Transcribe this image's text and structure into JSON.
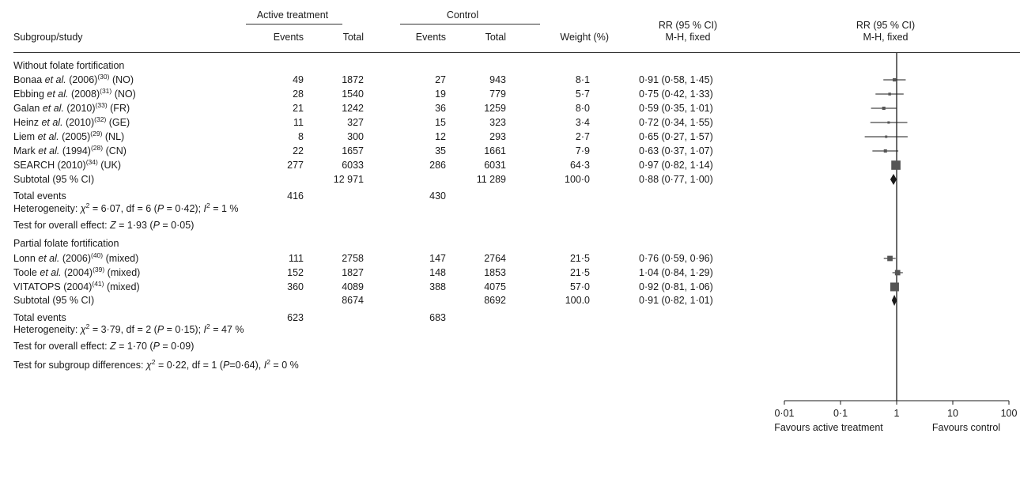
{
  "header": {
    "active_group": "Active treatment",
    "control_group": "Control",
    "col_study": "Subgroup/study",
    "col_events": "Events",
    "col_total": "Total",
    "col_weight": "Weight (%)",
    "rr_header": "RR (95 % CI)",
    "rr_method": "M-H, fixed",
    "plot_rr_header": "RR (95 % CI)",
    "plot_rr_method": "M-H, fixed"
  },
  "groups": [
    {
      "title": "Without folate fortification",
      "studies": [
        {
          "author": "Bonaa",
          "etal": " et al.",
          "year": " (2006)",
          "ref": "(30)",
          "country": " (NO)",
          "ae": "49",
          "at": "1872",
          "ce": "27",
          "ct": "943",
          "weight": "8·1",
          "ci": "0·91 (0·58, 1·45)"
        },
        {
          "author": "Ebbing",
          "etal": " et al.",
          "year": " (2008)",
          "ref": "(31)",
          "country": " (NO)",
          "ae": "28",
          "at": "1540",
          "ce": "19",
          "ct": "779",
          "weight": "5·7",
          "ci": "0·75 (0·42, 1·33)"
        },
        {
          "author": "Galan",
          "etal": " et al.",
          "year": " (2010)",
          "ref": "(33)",
          "country": " (FR)",
          "ae": "21",
          "at": "1242",
          "ce": "36",
          "ct": "1259",
          "weight": "8·0",
          "ci": "0·59 (0·35, 1·01)"
        },
        {
          "author": "Heinz",
          "etal": " et al.",
          "year": " (2010)",
          "ref": "(32)",
          "country": " (GE)",
          "ae": "11",
          "at": "327",
          "ce": "15",
          "ct": "323",
          "weight": "3·4",
          "ci": "0·72 (0·34, 1·55)"
        },
        {
          "author": "Liem",
          "etal": " et al.",
          "year": " (2005)",
          "ref": "(29)",
          "country": " (NL)",
          "ae": "8",
          "at": "300",
          "ce": "12",
          "ct": "293",
          "weight": "2·7",
          "ci": "0·65 (0·27, 1·57)"
        },
        {
          "author": "Mark",
          "etal": " et al.",
          "year": " (1994)",
          "ref": "(28)",
          "country": " (CN)",
          "ae": "22",
          "at": "1657",
          "ce": "35",
          "ct": "1661",
          "weight": "7·9",
          "ci": "0·63 (0·37, 1·07)"
        },
        {
          "author": "SEARCH",
          "etal": "",
          "year": " (2010)",
          "ref": "(34)",
          "country": " (UK)",
          "ae": "277",
          "at": "6033",
          "ce": "286",
          "ct": "6031",
          "weight": "64·3",
          "ci": "0·97 (0·82, 1·14)"
        }
      ],
      "subtotal": {
        "label": "Subtotal (95 % CI)",
        "at": "12 971",
        "ct": "11 289",
        "weight": "100·0",
        "ci": "0·88 (0·77, 1·00)"
      },
      "total_events": {
        "label": "Total events",
        "a": "416",
        "c": "430"
      },
      "heterogeneity": {
        "prefix": "Heterogeneity: ",
        "chi": "χ",
        "chi_rest": " = 6·07, df = 6 (",
        "p": "P",
        "p_rest": " = 0·42); ",
        "i": "I",
        "i_rest": " = 1 %"
      },
      "overall": {
        "prefix": "Test for overall effect: ",
        "z": "Z",
        "z_rest": " = 1·93 (",
        "p": "P",
        "p_rest": " = 0·05)"
      }
    },
    {
      "title": "Partial folate fortification",
      "studies": [
        {
          "author": "Lonn",
          "etal": " et al.",
          "year": " (2006)",
          "ref": "(40)",
          "country": " (mixed)",
          "ae": "111",
          "at": "2758",
          "ce": "147",
          "ct": "2764",
          "weight": "21·5",
          "ci": "0·76 (0·59, 0·96)"
        },
        {
          "author": "Toole",
          "etal": " et al.",
          "year": " (2004)",
          "ref": "(39)",
          "country": " (mixed)",
          "ae": "152",
          "at": "1827",
          "ce": "148",
          "ct": "1853",
          "weight": "21·5",
          "ci": "1·04 (0·84, 1·29)"
        },
        {
          "author": "VITATOPS",
          "etal": "",
          "year": " (2004)",
          "ref": "(41)",
          "country": " (mixed)",
          "ae": "360",
          "at": "4089",
          "ce": "388",
          "ct": "4075",
          "weight": "57·0",
          "ci": "0·92 (0·81, 1·06)"
        }
      ],
      "subtotal": {
        "label": "Subtotal (95 % CI)",
        "at": "8674",
        "ct": "8692",
        "weight": "100.0",
        "ci": "0·91 (0·82, 1·01)"
      },
      "total_events": {
        "label": "Total events",
        "a": "623",
        "c": "683"
      },
      "heterogeneity": {
        "prefix": "Heterogeneity: ",
        "chi": "χ",
        "chi_rest": " = 3·79, df = 2 (",
        "p": "P",
        "p_rest": " = 0·15); ",
        "i": "I",
        "i_rest": " = 47 %"
      },
      "overall": {
        "prefix": "Test for overall effect: ",
        "z": "Z",
        "z_rest": " = 1·70 (",
        "p": "P",
        "p_rest": " = 0·09)"
      }
    }
  ],
  "subgroup_test": {
    "prefix": "Test for subgroup differences: ",
    "chi": "χ",
    "chi_rest": " = 0·22, df = 1 (",
    "p": "P",
    "p_rest": "=0·64), ",
    "i": "I",
    "i_rest": " = 0 %"
  },
  "chart_data": {
    "type": "forest",
    "x_scale": "log",
    "xlim": [
      0.01,
      100
    ],
    "reference_line": 1,
    "x_ticks": [
      "0·01",
      "0·1",
      "1",
      "10",
      "100"
    ],
    "x_tick_values": [
      0.01,
      0.1,
      1,
      10,
      100
    ],
    "xlabel_left": "Favours active treatment",
    "xlabel_right": "Favours control",
    "studies": [
      {
        "rr": 0.91,
        "lo": 0.58,
        "hi": 1.45,
        "weight": 8.1
      },
      {
        "rr": 0.75,
        "lo": 0.42,
        "hi": 1.33,
        "weight": 5.7
      },
      {
        "rr": 0.59,
        "lo": 0.35,
        "hi": 1.01,
        "weight": 8.0
      },
      {
        "rr": 0.72,
        "lo": 0.34,
        "hi": 1.55,
        "weight": 3.4
      },
      {
        "rr": 0.65,
        "lo": 0.27,
        "hi": 1.57,
        "weight": 2.7
      },
      {
        "rr": 0.63,
        "lo": 0.37,
        "hi": 1.07,
        "weight": 7.9
      },
      {
        "rr": 0.97,
        "lo": 0.82,
        "hi": 1.14,
        "weight": 64.3
      },
      {
        "rr": 0.76,
        "lo": 0.59,
        "hi": 0.96,
        "weight": 21.5
      },
      {
        "rr": 1.04,
        "lo": 0.84,
        "hi": 1.29,
        "weight": 21.5
      },
      {
        "rr": 0.92,
        "lo": 0.81,
        "hi": 1.06,
        "weight": 57.0
      }
    ],
    "subtotals": [
      {
        "rr": 0.88,
        "lo": 0.77,
        "hi": 1.0
      },
      {
        "rr": 0.91,
        "lo": 0.82,
        "hi": 1.01
      }
    ],
    "mark_color": "#555555",
    "line_color": "#1a1a1a"
  }
}
